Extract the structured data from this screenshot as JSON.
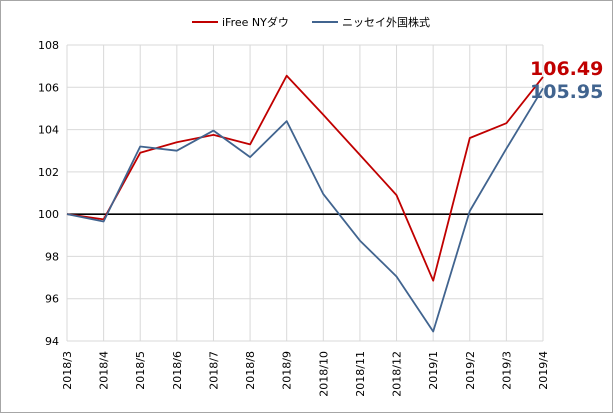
{
  "chart_data": {
    "type": "line",
    "title": "",
    "xlabel": "",
    "ylabel": "",
    "categories": [
      "2018/3",
      "2018/4",
      "2018/5",
      "2018/6",
      "2018/7",
      "2018/8",
      "2018/9",
      "2018/10",
      "2018/11",
      "2018/12",
      "2019/1",
      "2019/2",
      "2019/3",
      "2019/4"
    ],
    "ylim": [
      94,
      108
    ],
    "yticks": [
      94,
      96,
      98,
      100,
      102,
      104,
      106,
      108
    ],
    "grid": true,
    "reference_line": 100,
    "legend_position": "top-center",
    "series": [
      {
        "name": "iFree NYダウ",
        "color": "#c00000",
        "values": [
          100.0,
          99.75,
          102.9,
          103.4,
          103.75,
          103.3,
          106.55,
          104.7,
          102.8,
          100.9,
          96.85,
          103.6,
          104.3,
          106.49
        ],
        "end_label": "106.49"
      },
      {
        "name": "ニッセイ外国株式",
        "color": "#41648f",
        "values": [
          100.0,
          99.65,
          103.2,
          103.0,
          103.95,
          102.7,
          104.4,
          100.95,
          98.75,
          97.05,
          94.45,
          100.15,
          103.1,
          105.95
        ],
        "end_label": "105.95"
      }
    ]
  }
}
